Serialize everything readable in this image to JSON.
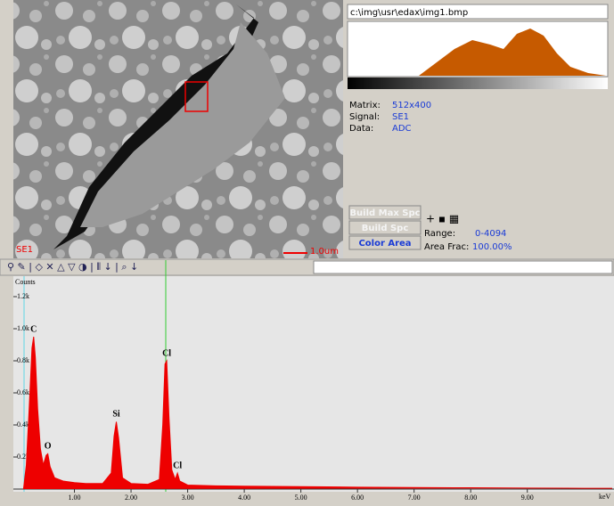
{
  "image_panel": {
    "marker_label": "SE1",
    "scale_label": "1.0um"
  },
  "info_panel": {
    "file_path": "c:\\img\\usr\\edax\\img1.bmp",
    "rows": [
      {
        "label": "Matrix:",
        "value": "512x400"
      },
      {
        "label": "Signal:",
        "value": "SE1"
      },
      {
        "label": "Data:",
        "value": "ADC"
      }
    ],
    "buttons": [
      "Build Max Spc",
      "Build Spc",
      "Color Area"
    ],
    "range": {
      "label": "Range:",
      "value": "0-4094"
    },
    "area_frac": {
      "label": "Area Frac:",
      "value": "100.00%"
    }
  },
  "chart_data": {
    "type": "area",
    "y_label": "Counts",
    "x_label": "keV",
    "color": "#ee0000",
    "x": [
      0.1,
      0.15,
      0.2,
      0.25,
      0.28,
      0.31,
      0.35,
      0.4,
      0.45,
      0.5,
      0.53,
      0.57,
      0.65,
      0.8,
      1.0,
      1.2,
      1.5,
      1.65,
      1.7,
      1.74,
      1.78,
      1.85,
      2.0,
      2.3,
      2.5,
      2.56,
      2.6,
      2.63,
      2.67,
      2.72,
      2.78,
      2.82,
      2.86,
      3.0,
      3.5,
      4.0,
      5.0,
      6.0,
      7.0,
      8.0,
      9.0,
      10.0,
      10.5
    ],
    "values": [
      0,
      150,
      500,
      880,
      950,
      820,
      500,
      250,
      150,
      210,
      220,
      140,
      70,
      50,
      40,
      35,
      35,
      100,
      330,
      420,
      320,
      70,
      35,
      30,
      60,
      400,
      780,
      800,
      450,
      120,
      60,
      100,
      50,
      25,
      20,
      18,
      15,
      12,
      10,
      8,
      6,
      5,
      5
    ],
    "annotations": [
      {
        "text": "C",
        "x": 0.28,
        "y": 950
      },
      {
        "text": "O",
        "x": 0.53,
        "y": 220
      },
      {
        "text": "Si",
        "x": 1.74,
        "y": 420
      },
      {
        "text": "Cl",
        "x": 2.63,
        "y": 800
      },
      {
        "text": "Cl",
        "x": 2.82,
        "y": 100
      }
    ],
    "xlim": [
      0,
      10.5
    ],
    "ylim": [
      0,
      1300
    ],
    "xticks": [
      {
        "value": 1,
        "label": "1.00"
      },
      {
        "value": 2,
        "label": "2.00"
      },
      {
        "value": 3,
        "label": "3.00"
      },
      {
        "value": 4,
        "label": "4.00"
      },
      {
        "value": 5,
        "label": "5.00"
      },
      {
        "value": 6,
        "label": "6.00"
      },
      {
        "value": 7,
        "label": "7.00"
      },
      {
        "value": 8,
        "label": "8.00"
      },
      {
        "value": 9,
        "label": "9.00"
      }
    ],
    "yticks": [
      {
        "value": 200,
        "label": "0.2k"
      },
      {
        "value": 400,
        "label": "0.4k"
      },
      {
        "value": 600,
        "label": "0.6k"
      },
      {
        "value": 800,
        "label": "0.8k"
      },
      {
        "value": 1000,
        "label": "1.0k"
      },
      {
        "value": 1200,
        "label": "1.2k"
      }
    ]
  }
}
